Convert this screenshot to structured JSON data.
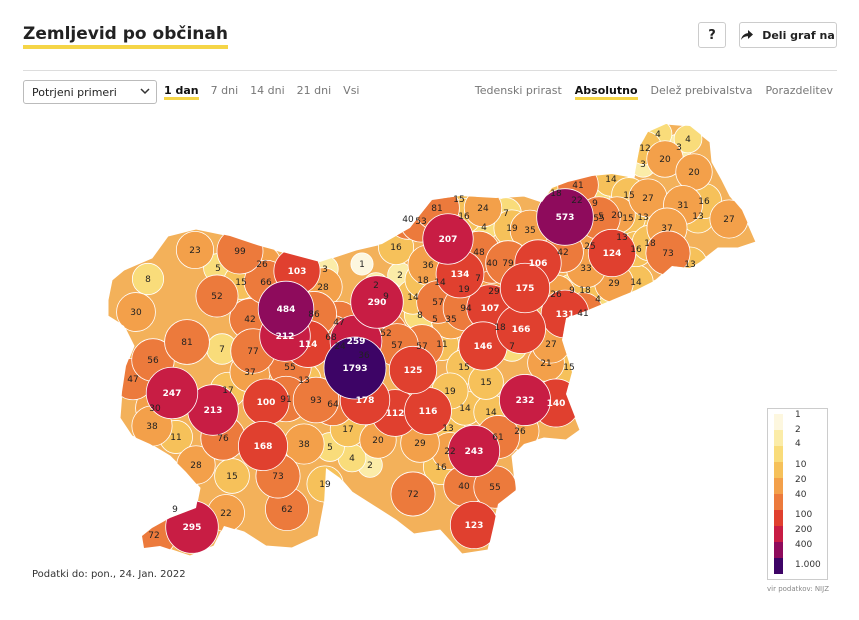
{
  "header": {
    "title": "Zemljevid po občinah",
    "help_label": "?",
    "share_label": "Deli graf na"
  },
  "controls": {
    "metric_select": "Potrjeni primeri",
    "ranges": [
      {
        "label": "1 dan",
        "active": true
      },
      {
        "label": "7 dni",
        "active": false
      },
      {
        "label": "14 dni",
        "active": false
      },
      {
        "label": "21 dni",
        "active": false
      },
      {
        "label": "Vsi",
        "active": false
      }
    ],
    "modes": [
      {
        "label": "Tedenski prirast",
        "active": false
      },
      {
        "label": "Absolutno",
        "active": true
      },
      {
        "label": "Delež prebivalstva",
        "active": false
      },
      {
        "label": "Porazdelitev",
        "active": false
      }
    ]
  },
  "footer": {
    "data_date": "Podatki do: pon., 24. Jan. 2022",
    "source": "vir podatkov: NIJZ"
  },
  "legend": {
    "labels": [
      "1",
      "2",
      "4",
      "10",
      "20",
      "40",
      "100",
      "200",
      "400",
      "1.000"
    ],
    "colors": [
      "#fdf7df",
      "#fbeca8",
      "#f9dc7a",
      "#f6c15a",
      "#f3a04a",
      "#ec7a3c",
      "#e0402f",
      "#c81d44",
      "#8e0b5c",
      "#3d0466"
    ]
  },
  "map": {
    "municipalities": [
      {
        "v": "4"
      },
      {
        "v": "4"
      },
      {
        "v": "12"
      },
      {
        "v": "3"
      },
      {
        "v": "20"
      },
      {
        "v": "3"
      },
      {
        "v": "20"
      },
      {
        "v": "41"
      },
      {
        "v": "14"
      },
      {
        "v": "18"
      },
      {
        "v": "22"
      },
      {
        "v": "15"
      },
      {
        "v": "9"
      },
      {
        "v": "5"
      },
      {
        "v": "20"
      },
      {
        "v": "27"
      },
      {
        "v": "31"
      },
      {
        "v": "16"
      },
      {
        "v": "15"
      },
      {
        "v": "573"
      },
      {
        "v": "55"
      },
      {
        "v": "13"
      },
      {
        "v": "37"
      },
      {
        "v": "13"
      },
      {
        "v": "27"
      },
      {
        "v": "15"
      },
      {
        "v": "81"
      },
      {
        "v": "24"
      },
      {
        "v": "7"
      },
      {
        "v": "40"
      },
      {
        "v": "53"
      },
      {
        "v": "16"
      },
      {
        "v": "4"
      },
      {
        "v": "19"
      },
      {
        "v": "35"
      },
      {
        "v": "207"
      },
      {
        "v": "42"
      },
      {
        "v": "25"
      },
      {
        "v": "13"
      },
      {
        "v": "16"
      },
      {
        "v": "18"
      },
      {
        "v": "73"
      },
      {
        "v": "124"
      },
      {
        "v": "13"
      },
      {
        "v": "23"
      },
      {
        "v": "99"
      },
      {
        "v": "16"
      },
      {
        "v": "48"
      },
      {
        "v": "79"
      },
      {
        "v": "106"
      },
      {
        "v": "33"
      },
      {
        "v": "36"
      },
      {
        "v": "134"
      },
      {
        "v": "7"
      },
      {
        "v": "19"
      },
      {
        "v": "8"
      },
      {
        "v": "5"
      },
      {
        "v": "26"
      },
      {
        "v": "103"
      },
      {
        "v": "3"
      },
      {
        "v": "1"
      },
      {
        "v": "2"
      },
      {
        "v": "2"
      },
      {
        "v": "18"
      },
      {
        "v": "14"
      },
      {
        "v": "40"
      },
      {
        "v": "15"
      },
      {
        "v": "66"
      },
      {
        "v": "29"
      },
      {
        "v": "175"
      },
      {
        "v": "26"
      },
      {
        "v": "9"
      },
      {
        "v": "18"
      },
      {
        "v": "29"
      },
      {
        "v": "14"
      },
      {
        "v": "52"
      },
      {
        "v": "28"
      },
      {
        "v": "290"
      },
      {
        "v": "9"
      },
      {
        "v": "14"
      },
      {
        "v": "57"
      },
      {
        "v": "4"
      },
      {
        "v": "30"
      },
      {
        "v": "484"
      },
      {
        "v": "86"
      },
      {
        "v": "8"
      },
      {
        "v": "5"
      },
      {
        "v": "35"
      },
      {
        "v": "94"
      },
      {
        "v": "107"
      },
      {
        "v": "131"
      },
      {
        "v": "41"
      },
      {
        "v": "42"
      },
      {
        "v": "47"
      },
      {
        "v": "166"
      },
      {
        "v": "212"
      },
      {
        "v": "68"
      },
      {
        "v": "52"
      },
      {
        "v": "18"
      },
      {
        "v": "81"
      },
      {
        "v": "114"
      },
      {
        "v": "259"
      },
      {
        "v": "57"
      },
      {
        "v": "11"
      },
      {
        "v": "146"
      },
      {
        "v": "7"
      },
      {
        "v": "27"
      },
      {
        "v": "56"
      },
      {
        "v": "7"
      },
      {
        "v": "77"
      },
      {
        "v": "24"
      },
      {
        "v": "36"
      },
      {
        "v": "57"
      },
      {
        "v": "21"
      },
      {
        "v": "15"
      },
      {
        "v": "37"
      },
      {
        "v": "55"
      },
      {
        "v": "1793"
      },
      {
        "v": "125"
      },
      {
        "v": "15"
      },
      {
        "v": "47"
      },
      {
        "v": "13"
      },
      {
        "v": "15"
      },
      {
        "v": "247"
      },
      {
        "v": "17"
      },
      {
        "v": "19"
      },
      {
        "v": "100"
      },
      {
        "v": "91"
      },
      {
        "v": "93"
      },
      {
        "v": "64"
      },
      {
        "v": "178"
      },
      {
        "v": "232"
      },
      {
        "v": "140"
      },
      {
        "v": "30"
      },
      {
        "v": "213"
      },
      {
        "v": "112"
      },
      {
        "v": "116"
      },
      {
        "v": "14"
      },
      {
        "v": "14"
      },
      {
        "v": "38"
      },
      {
        "v": "17"
      },
      {
        "v": "13"
      },
      {
        "v": "26"
      },
      {
        "v": "11"
      },
      {
        "v": "76"
      },
      {
        "v": "20"
      },
      {
        "v": "29"
      },
      {
        "v": "61"
      },
      {
        "v": "168"
      },
      {
        "v": "38"
      },
      {
        "v": "5"
      },
      {
        "v": "4"
      },
      {
        "v": "22"
      },
      {
        "v": "243"
      },
      {
        "v": "28"
      },
      {
        "v": "2"
      },
      {
        "v": "16"
      },
      {
        "v": "15"
      },
      {
        "v": "73"
      },
      {
        "v": "19"
      },
      {
        "v": "40"
      },
      {
        "v": "55"
      },
      {
        "v": "72"
      },
      {
        "v": "62"
      },
      {
        "v": "9"
      },
      {
        "v": "22"
      },
      {
        "v": "295"
      },
      {
        "v": "123"
      },
      {
        "v": "72"
      }
    ]
  }
}
